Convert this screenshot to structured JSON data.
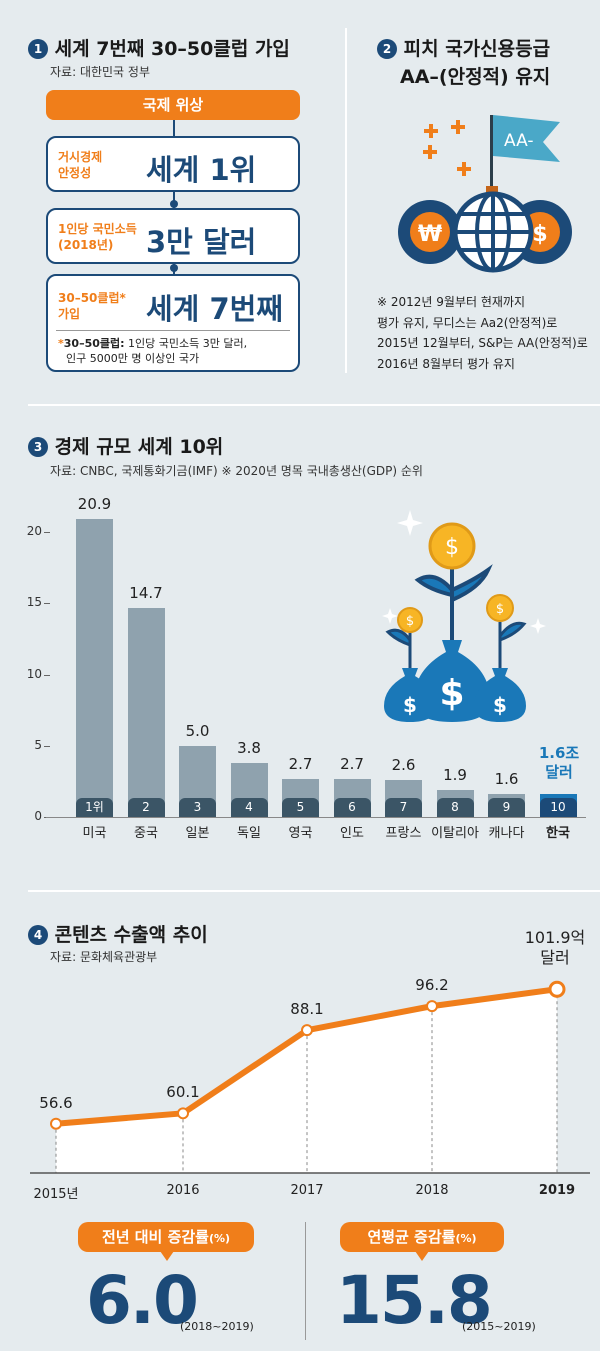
{
  "section1": {
    "num": "1",
    "title": "세계 7번째 30–50클럽 가입",
    "source": "자료: 대한민국 정부",
    "header": "국제 위상",
    "items": [
      {
        "label1": "거시경제",
        "label2": "안정성",
        "value": "세계 1위"
      },
      {
        "label1": "1인당 국민소득",
        "label2": "(2018년)",
        "value": "3만 달러"
      },
      {
        "label1": "30–50클럽*",
        "label2": "가입",
        "value": "세계 7번째"
      }
    ],
    "note_star": "*",
    "note_bold": "30–50클럽:",
    "note_text1": " 1인당 국민소득 3만 달러,",
    "note_text2": "인구 5000만 명 이상인 국가"
  },
  "section2": {
    "num": "2",
    "title1": "피치 국가신용등급",
    "title2": "AA–(안정적) 유지",
    "flag": "AA-",
    "won": "₩",
    "dollar": "$",
    "notes": [
      "※ 2012년 9월부터 현재까지",
      "평가 유지, 무디스는 Aa2(안정적)로",
      "2015년 12월부터, S&P는 AA(안정적)로",
      "2016년 8월부터 평가 유지"
    ]
  },
  "section3": {
    "num": "3",
    "title": "경제 규모 세계 10위",
    "source": "자료: CNBC, 국제통화기금(IMF) ※ 2020년 명목 국내총생산(GDP) 순위",
    "highlight1": "1.6조",
    "highlight2": "달러",
    "icon_dollar": "$"
  },
  "section4": {
    "num": "4",
    "title": "콘텐츠 수출액 추이",
    "source": "자료: 문화체육관광부",
    "last1": "101.9억",
    "last2": "달러"
  },
  "stats": {
    "left_label": "전년 대비 증감률",
    "left_unit": "(%)",
    "left_value": "6.0",
    "left_range": "(2018~2019)",
    "right_label": "연평균 증감률",
    "right_unit": "(%)",
    "right_value": "15.8",
    "right_range": "(2015~2019)"
  },
  "chart_data": [
    {
      "type": "bar",
      "title": "경제 규모 세계 10위",
      "categories": [
        "미국",
        "중국",
        "일본",
        "독일",
        "영국",
        "인도",
        "프랑스",
        "이탈리아",
        "캐나다",
        "한국"
      ],
      "ranks": [
        "1위",
        "2",
        "3",
        "4",
        "5",
        "6",
        "7",
        "8",
        "9",
        "10"
      ],
      "values": [
        20.9,
        14.7,
        5.0,
        3.8,
        2.7,
        2.7,
        2.6,
        1.9,
        1.6,
        1.6
      ],
      "value_labels": [
        "20.9",
        "14.7",
        "5.0",
        "3.8",
        "2.7",
        "2.7",
        "2.6",
        "1.9",
        "1.6",
        ""
      ],
      "yticks": [
        "0",
        "5",
        "10",
        "15",
        "20"
      ],
      "ylim": [
        0,
        21
      ]
    },
    {
      "type": "line",
      "title": "콘텐츠 수출액 추이",
      "x": [
        "2015년",
        "2016",
        "2017",
        "2018",
        "2019"
      ],
      "values": [
        56.6,
        60.1,
        88.1,
        96.2,
        101.9
      ],
      "value_labels": [
        "56.6",
        "60.1",
        "88.1",
        "96.2",
        ""
      ],
      "ylim": [
        40,
        105
      ]
    }
  ]
}
